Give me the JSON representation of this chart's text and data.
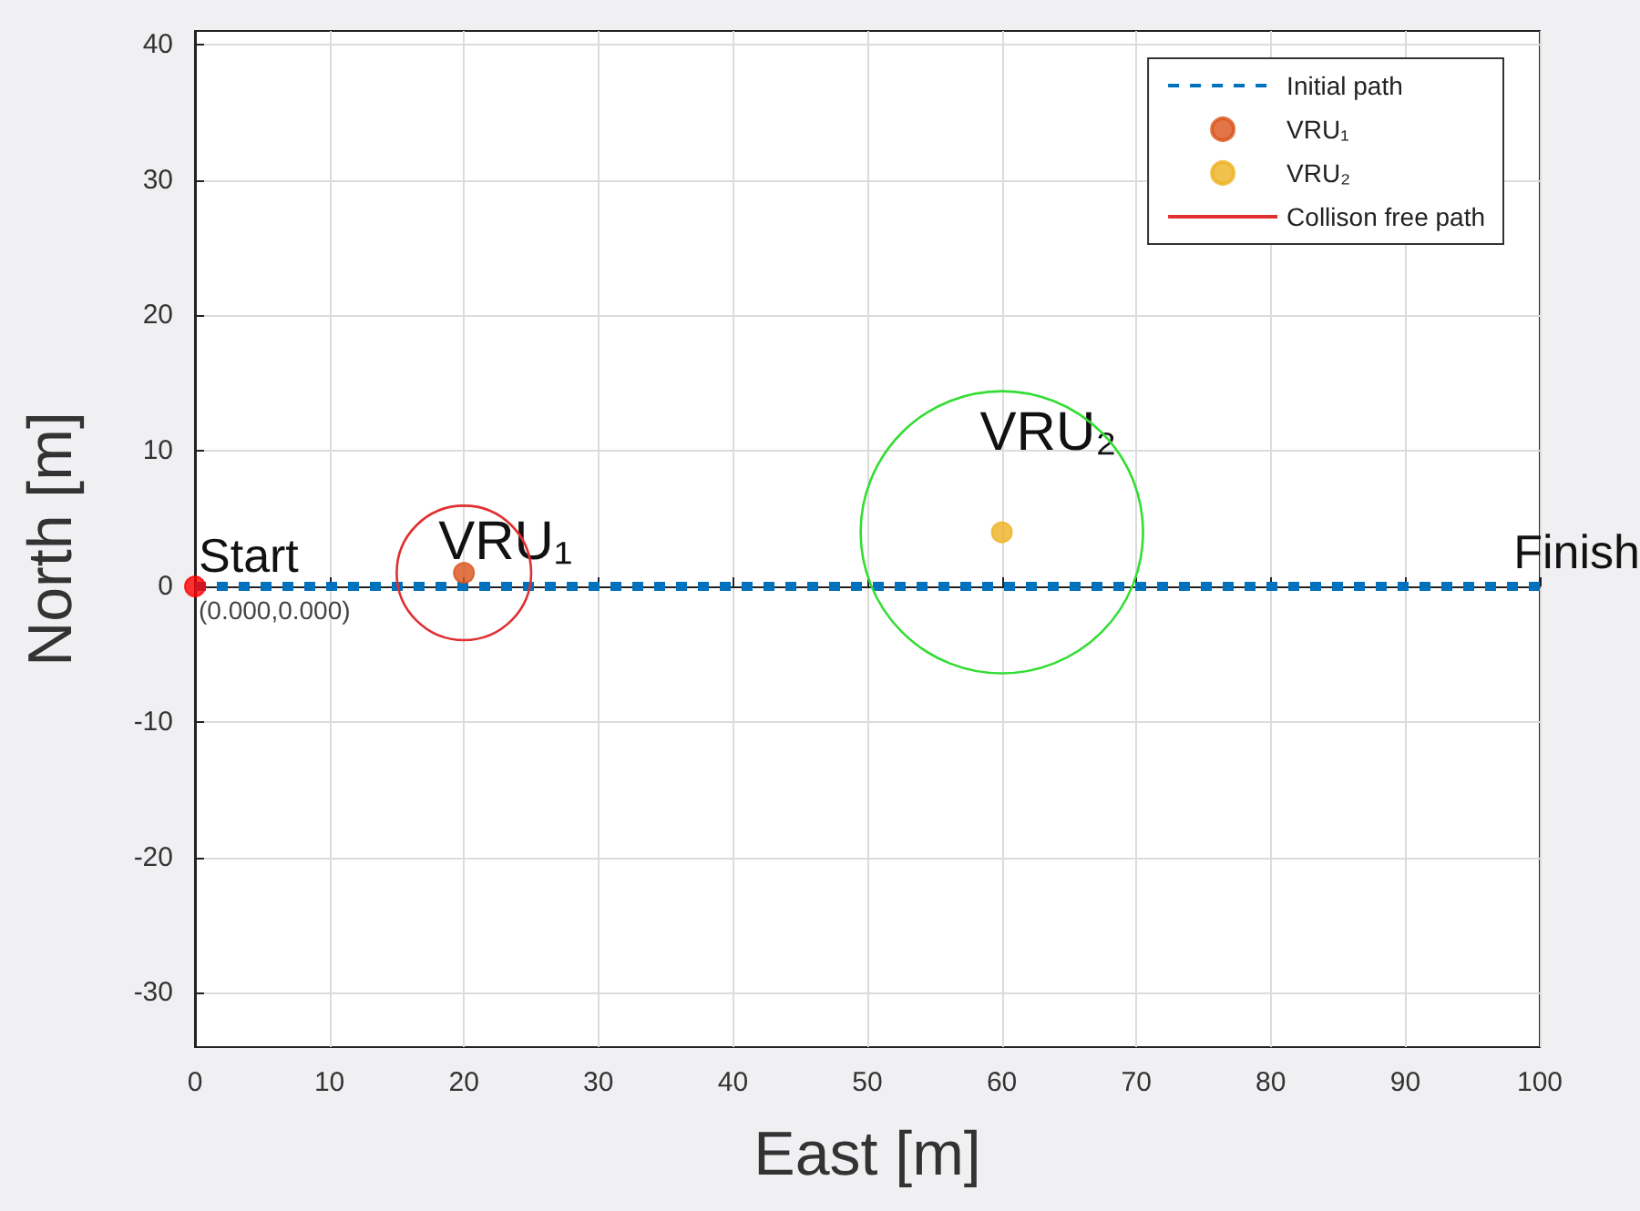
{
  "chart_data": {
    "type": "line",
    "xlabel": "East [m]",
    "ylabel": "North [m]",
    "xlim": [
      0,
      100
    ],
    "xticks": [
      0,
      10,
      20,
      30,
      40,
      50,
      60,
      70,
      80,
      90,
      100
    ],
    "ylim": [
      -34,
      41
    ],
    "yticks": [
      -30,
      -20,
      -10,
      0,
      10,
      20,
      30,
      40
    ],
    "grid": true,
    "legend": "top right",
    "series": [
      {
        "name": "Initial path",
        "type": "line",
        "color": "#0072bd",
        "line_style": "dashed",
        "marker": "none",
        "x": [
          0,
          100
        ],
        "values": [
          0,
          0
        ]
      },
      {
        "name": "VRU₁",
        "type": "scatter",
        "color": "#d95319",
        "marker": "circle",
        "x": [
          20
        ],
        "values": [
          1
        ]
      },
      {
        "name": "VRU₂",
        "type": "scatter",
        "color": "#edb120",
        "marker": "circle",
        "x": [
          60
        ],
        "values": [
          4
        ]
      },
      {
        "name": "Collison free path",
        "type": "line",
        "color": "#e03030",
        "line_style": "solid",
        "marker": "none"
      },
      {
        "type": "scatter",
        "color": "#ff0000",
        "marker": "circle",
        "x": [
          0
        ],
        "values": [
          0
        ]
      }
    ],
    "annotations": [
      {
        "text": "Start",
        "x": 0,
        "y": 0
      },
      {
        "text": "(0.000,0.000)",
        "x": 0,
        "y": 0
      },
      {
        "text": "VRU₁",
        "x": 20,
        "y": 1
      },
      {
        "text": "VRU₂",
        "x": 60,
        "y": 4
      },
      {
        "text": "Finish",
        "x": 100,
        "y": 0
      }
    ]
  }
}
